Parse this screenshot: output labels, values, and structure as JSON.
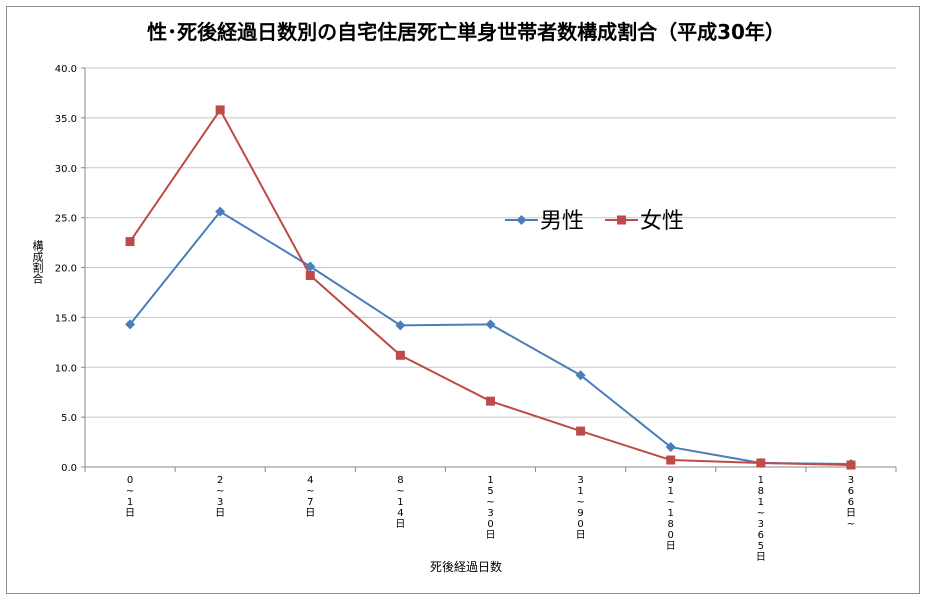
{
  "chart_data": {
    "type": "line",
    "title": "性･死後経過日数別の自宅住居死亡単身世帯者数構成割合（平成30年）",
    "xlabel": "死後経過日数",
    "ylabel": "構成割合",
    "ylim": [
      0,
      40
    ],
    "yticks": [
      "0.0",
      "5.0",
      "10.0",
      "15.0",
      "20.0",
      "25.0",
      "30.0",
      "35.0",
      "40.0"
    ],
    "categories": [
      "0~1日",
      "2~3日",
      "4~7日",
      "8~14日",
      "15~30日",
      "31~90日",
      "91~180日",
      "181~365日",
      "366日~"
    ],
    "series": [
      {
        "name": "男性",
        "color": "#4a7ebb",
        "marker": "diamond",
        "values": [
          14.3,
          25.6,
          20.1,
          14.2,
          14.3,
          9.2,
          2.0,
          0.4,
          0.3
        ]
      },
      {
        "name": "女性",
        "color": "#be4b48",
        "marker": "square",
        "values": [
          22.6,
          35.8,
          19.2,
          11.2,
          6.6,
          3.6,
          0.7,
          0.4,
          0.2
        ]
      }
    ],
    "grid": true,
    "legend_position": "inside-right"
  }
}
